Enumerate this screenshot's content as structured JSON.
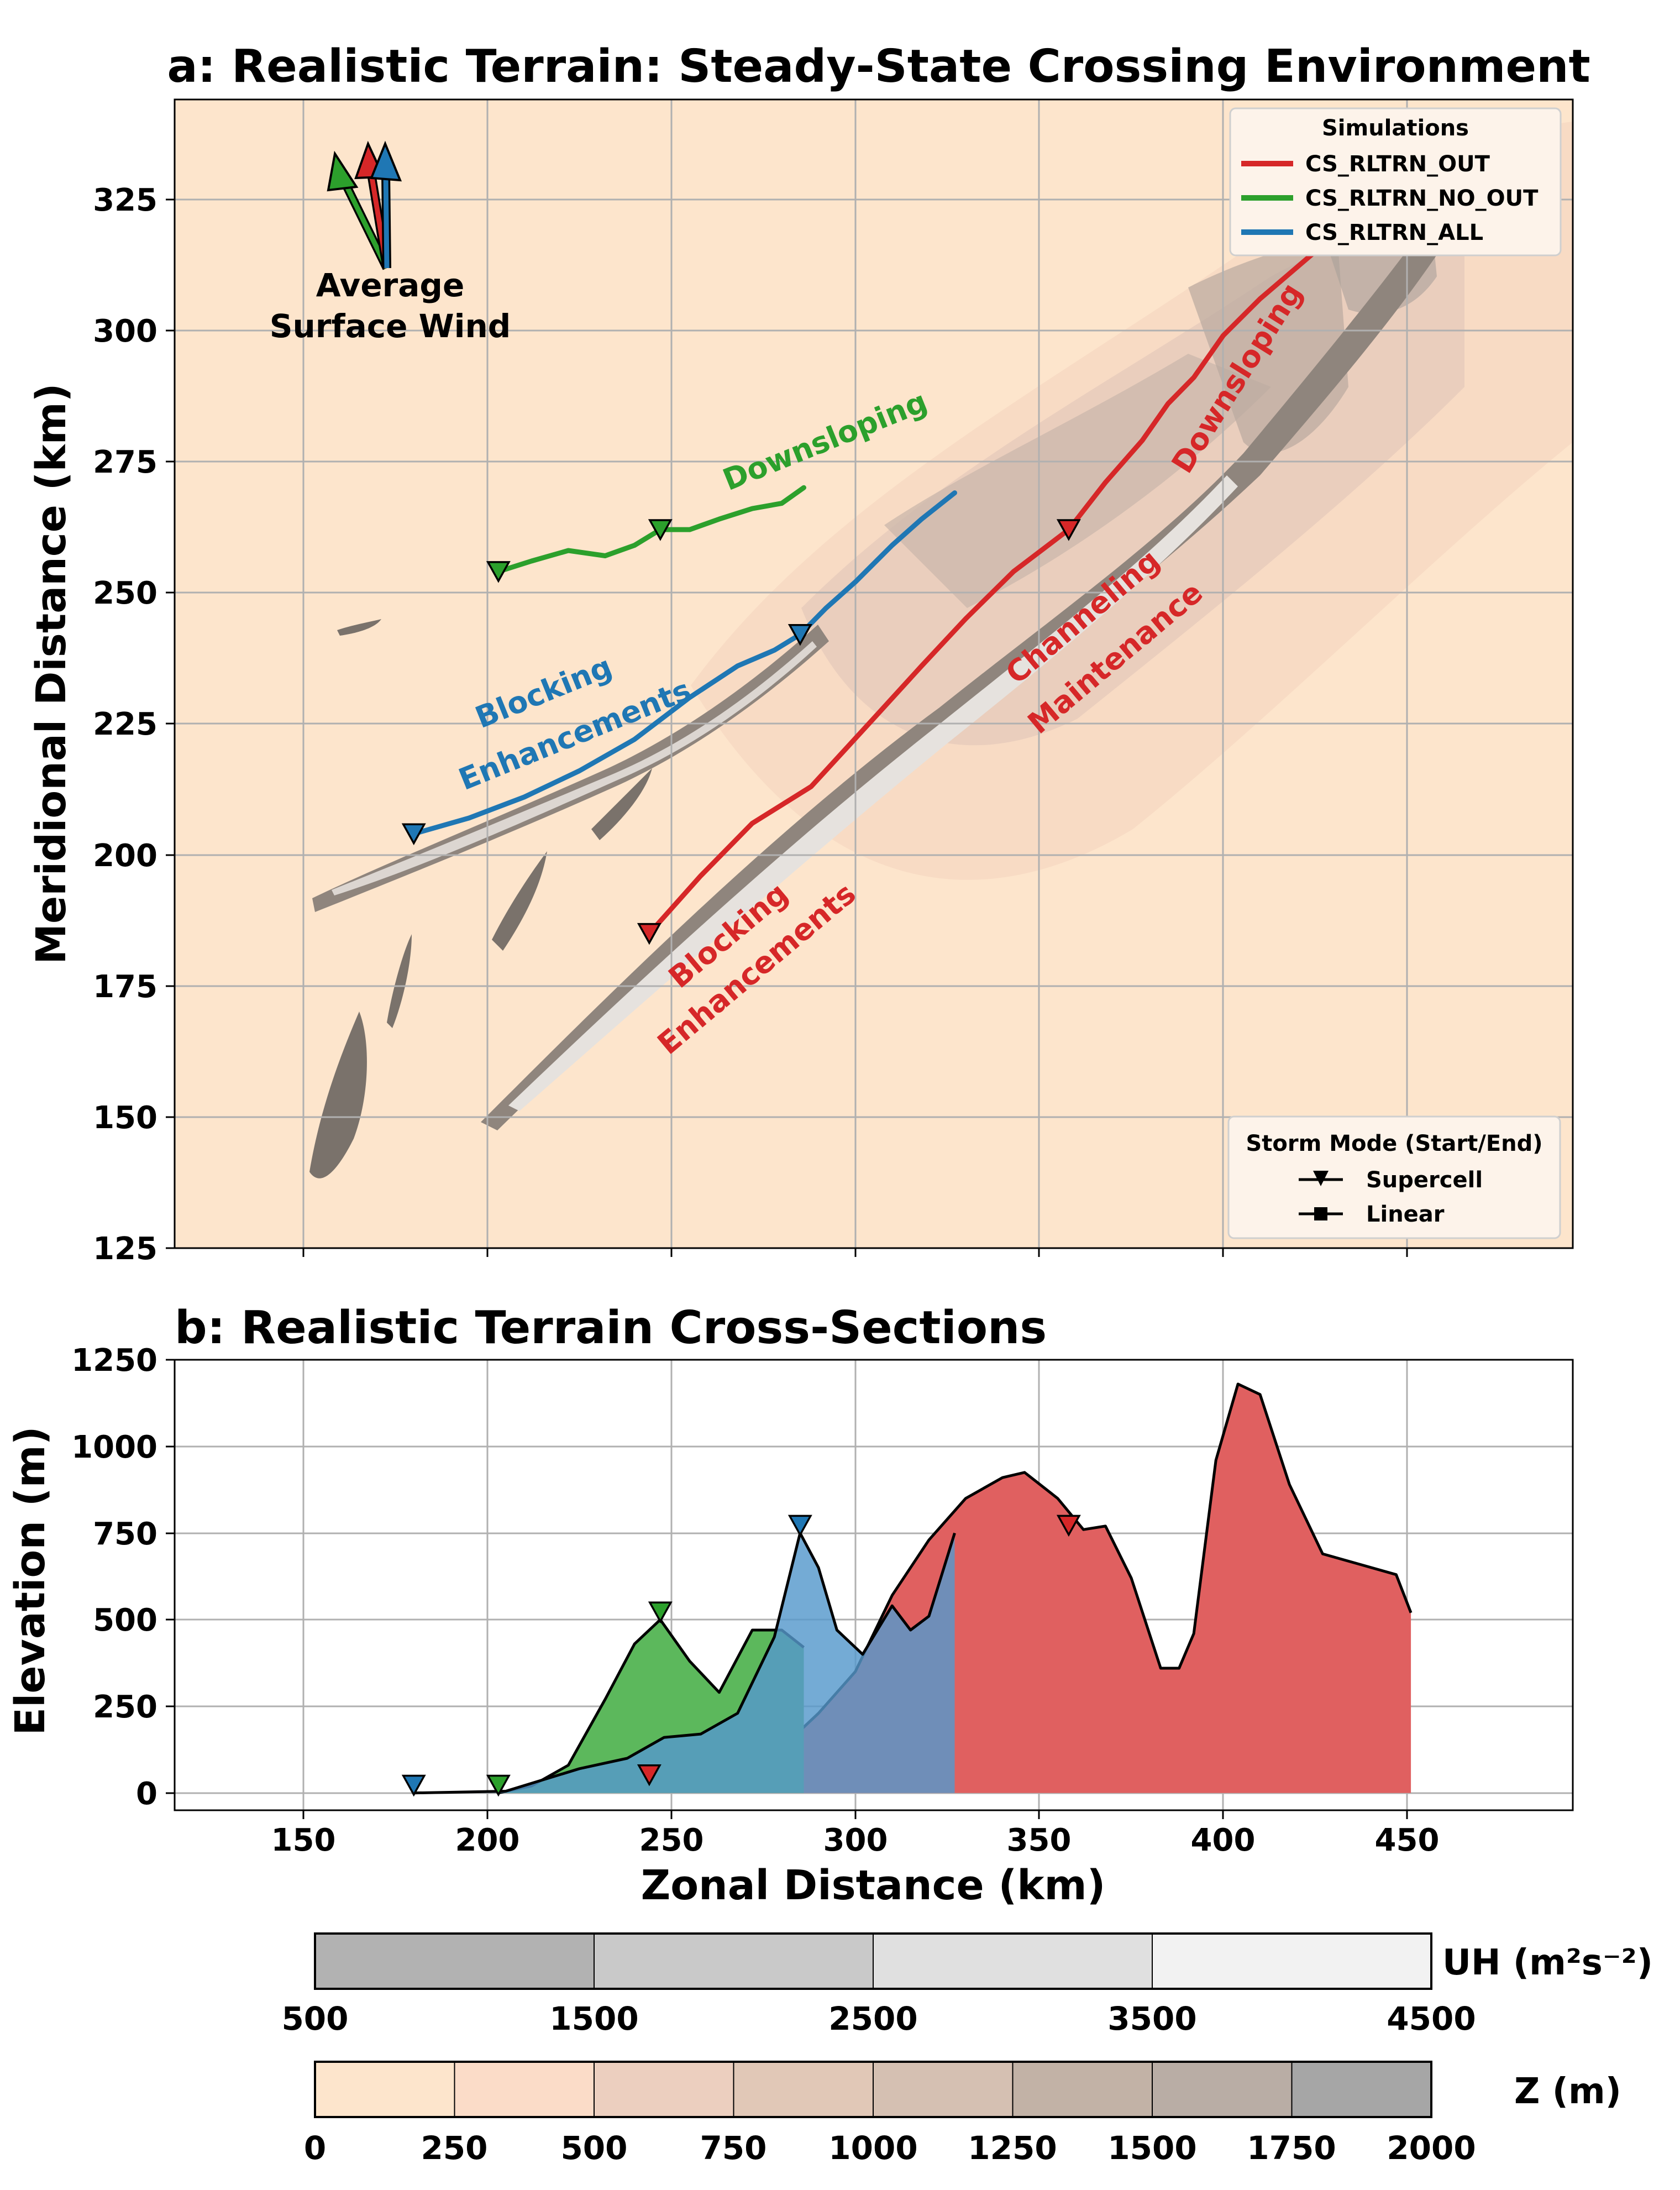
{
  "colors": {
    "out": "#d62728",
    "no_out": "#2ca02c",
    "all": "#1f77b4",
    "out_fill": "#e06060",
    "no_out_fill": "#5cb85c",
    "all_fill": "#5599cc",
    "terrain_base": "#fde5cc"
  },
  "icons": {
    "wind_arrows": "arrow-icon",
    "supercell_marker": "triangle-down-icon",
    "linear_marker": "square-icon"
  },
  "chart_data": [
    {
      "type": "line",
      "title": "a: Realistic Terrain: Steady-State Crossing Environment",
      "xlabel": "",
      "ylabel": "Meridional Distance (km)",
      "xlim": [
        115,
        495
      ],
      "ylim": [
        125,
        344
      ],
      "xticks": [
        150,
        200,
        250,
        300,
        350,
        400,
        450
      ],
      "yticks": [
        125,
        150,
        175,
        200,
        225,
        250,
        275,
        300,
        325
      ],
      "grid": true,
      "legend": {
        "title": "Simulations",
        "position": "top-right",
        "entries": [
          "CS_RLTRN_OUT",
          "CS_RLTRN_NO_OUT",
          "CS_RLTRN_ALL"
        ]
      },
      "mode_legend": {
        "title": "Storm Mode (Start/End)",
        "position": "bottom-right",
        "entries": [
          "Supercell",
          "Linear"
        ]
      },
      "wind_label": [
        "Average",
        "Surface Wind"
      ],
      "series": [
        {
          "name": "CS_RLTRN_OUT",
          "color_key": "out",
          "x": [
            244,
            258,
            272,
            288,
            305,
            318,
            330,
            343,
            358,
            368,
            378,
            385,
            392,
            400,
            410,
            425,
            440
          ],
          "y": [
            185,
            196,
            206,
            213,
            226,
            236,
            245,
            254,
            262,
            271,
            279,
            286,
            291,
            299,
            306,
            315,
            323
          ],
          "markers": [
            {
              "x": 244,
              "y": 185
            },
            {
              "x": 358,
              "y": 262
            }
          ]
        },
        {
          "name": "CS_RLTRN_NO_OUT",
          "color_key": "no_out",
          "x": [
            203,
            212,
            222,
            232,
            240,
            247,
            255,
            263,
            272,
            280,
            286
          ],
          "y": [
            254,
            256,
            258,
            257,
            259,
            262,
            262,
            264,
            266,
            267,
            270
          ],
          "markers": [
            {
              "x": 203,
              "y": 254
            },
            {
              "x": 247,
              "y": 262
            }
          ]
        },
        {
          "name": "CS_RLTRN_ALL",
          "color_key": "all",
          "x": [
            180,
            195,
            210,
            225,
            240,
            255,
            268,
            278,
            285,
            292,
            300,
            310,
            318,
            327
          ],
          "y": [
            204,
            207,
            211,
            216,
            222,
            230,
            236,
            239,
            242,
            247,
            252,
            259,
            264,
            269
          ],
          "markers": [
            {
              "x": 180,
              "y": 204
            },
            {
              "x": 285,
              "y": 242
            }
          ]
        }
      ],
      "annotations": [
        {
          "text": "Downsloping",
          "color_key": "no_out"
        },
        {
          "text": "Blocking",
          "color_key": "all"
        },
        {
          "text": "Enhancements",
          "color_key": "all"
        },
        {
          "text": "Blocking",
          "color_key": "out"
        },
        {
          "text": "Enhancements",
          "color_key": "out"
        },
        {
          "text": "Channeling",
          "color_key": "out"
        },
        {
          "text": "Maintenance",
          "color_key": "out"
        },
        {
          "text": "Downsloping",
          "color_key": "out"
        }
      ]
    },
    {
      "type": "area",
      "title": "b: Realistic Terrain Cross-Sections",
      "xlabel": "Zonal Distance (km)",
      "ylabel": "Elevation (m)",
      "xlim": [
        115,
        495
      ],
      "ylim": [
        -50,
        1250
      ],
      "xticks": [
        150,
        200,
        250,
        300,
        350,
        400,
        450
      ],
      "yticks": [
        0,
        250,
        500,
        750,
        1000,
        1250
      ],
      "grid": true,
      "series": [
        {
          "name": "CS_RLTRN_OUT",
          "color_key": "out_fill",
          "x": [
            244,
            255,
            270,
            282,
            290,
            300,
            310,
            320,
            330,
            340,
            346,
            355,
            362,
            368,
            375,
            383,
            388,
            392,
            398,
            404,
            410,
            418,
            427,
            437,
            447,
            451
          ],
          "y": [
            30,
            60,
            100,
            150,
            230,
            350,
            570,
            730,
            850,
            910,
            925,
            850,
            760,
            770,
            620,
            360,
            360,
            460,
            960,
            1180,
            1150,
            890,
            690,
            660,
            630,
            520
          ],
          "markers": [
            {
              "x": 244,
              "y": 30
            },
            {
              "x": 358,
              "y": 750
            }
          ]
        },
        {
          "name": "CS_RLTRN_NO_OUT",
          "color_key": "no_out_fill",
          "x": [
            203,
            212,
            222,
            232,
            240,
            247,
            255,
            263,
            272,
            280,
            286
          ],
          "y": [
            0,
            20,
            80,
            270,
            430,
            500,
            380,
            290,
            470,
            470,
            420
          ],
          "markers": [
            {
              "x": 203,
              "y": 0
            },
            {
              "x": 247,
              "y": 500
            }
          ]
        },
        {
          "name": "CS_RLTRN_ALL",
          "color_key": "all_fill",
          "x": [
            180,
            205,
            225,
            238,
            248,
            258,
            268,
            278,
            285,
            290,
            295,
            302,
            310,
            315,
            320,
            327
          ],
          "y": [
            0,
            5,
            70,
            100,
            160,
            170,
            230,
            450,
            750,
            650,
            470,
            400,
            540,
            470,
            510,
            750
          ],
          "markers": [
            {
              "x": 180,
              "y": 0
            },
            {
              "x": 285,
              "y": 750
            }
          ]
        }
      ]
    }
  ],
  "colorbars": {
    "uh": {
      "label": "UH (m²s⁻²)",
      "ticks": [
        "500",
        "1500",
        "2500",
        "3500",
        "4500"
      ],
      "colors": [
        "#b2b2b2",
        "#c9c9c9",
        "#e0e0e0",
        "#f2f2f2"
      ]
    },
    "z": {
      "label": "Z (m)",
      "ticks": [
        "0",
        "250",
        "500",
        "750",
        "1000",
        "1250",
        "1500",
        "1750",
        "2000"
      ],
      "colors": [
        "#fde5cc",
        "#fbdcc8",
        "#eccfbf",
        "#e1c8b7",
        "#d5c0b2",
        "#c2b2a6",
        "#b9ada5",
        "#a6a6a6"
      ]
    }
  }
}
